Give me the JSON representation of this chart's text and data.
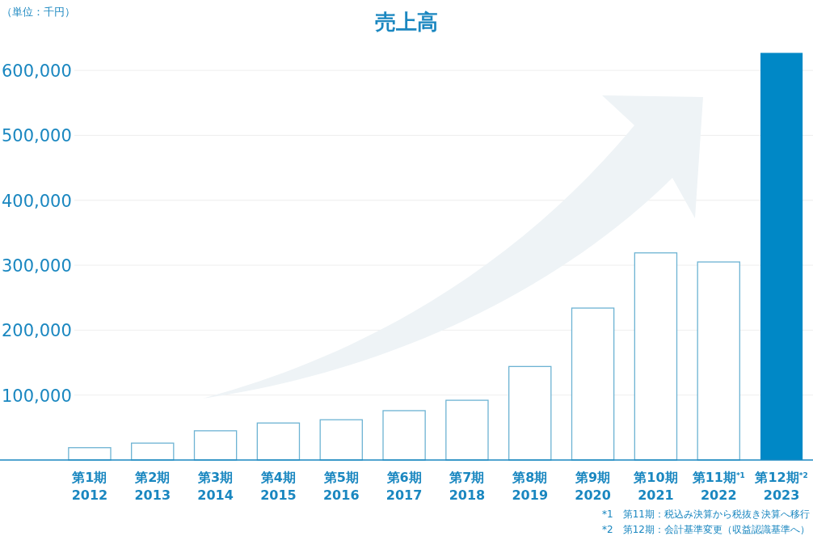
{
  "chart_data": {
    "type": "bar",
    "title": "売上高",
    "ylabel": "（単位：千円）",
    "categories": [
      "第1期\n2012",
      "第2期\n2013",
      "第3期\n2014",
      "第4期\n2015",
      "第5期\n2016",
      "第6期\n2017",
      "第7期\n2018",
      "第8期\n2019",
      "第9期\n2020",
      "第10期\n2021",
      "第11期$^{*1}$\n2022",
      "第12期$^{*2}$\n2023"
    ],
    "series": [
      {
        "color": "#6db3d3",
        "values": [
          19000,
          26000,
          45000,
          57000,
          62000,
          76000,
          92000,
          144000,
          234000,
          319000,
          305000,
          null
        ]
      },
      {
        "color": "#0088c6",
        "values": [
          null,
          null,
          null,
          null,
          null,
          null,
          null,
          null,
          null,
          null,
          null,
          627000
        ]
      }
    ],
    "ylim": [
      0,
      630000
    ],
    "yticks": [
      {
        "value": 100000,
        "label": "100,000"
      },
      {
        "value": 200000,
        "label": "200,000"
      },
      {
        "value": 300000,
        "label": "300,000"
      },
      {
        "value": 400000,
        "label": "400,000"
      },
      {
        "value": 500000,
        "label": "500,000"
      },
      {
        "value": 600000,
        "label": "600,000"
      }
    ],
    "grid": "y",
    "annotations": [
      "*1　第11期：税込み決算から税抜き決算へ移行",
      "*2　第12期：会計基準変更（収益認識基準へ）"
    ]
  }
}
